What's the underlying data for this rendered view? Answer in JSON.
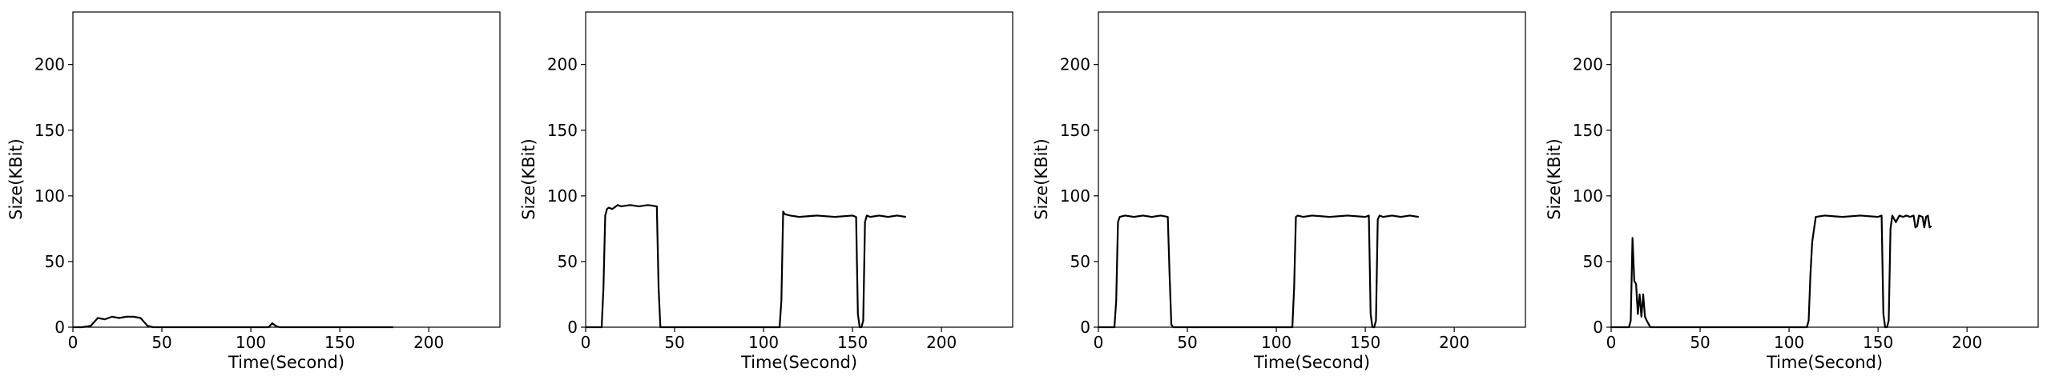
{
  "chart_data": [
    {
      "type": "line",
      "xlabel": "Time(Second)",
      "ylabel": "Size(KBit)",
      "xlim": [
        0,
        240
      ],
      "ylim": [
        0,
        240
      ],
      "xticks": [
        0,
        50,
        100,
        150,
        200
      ],
      "yticks": [
        0,
        50,
        100,
        150,
        200
      ],
      "grid": false,
      "series": [
        {
          "color": "#000000",
          "x": [
            0,
            5,
            10,
            12,
            14,
            18,
            22,
            26,
            30,
            34,
            38,
            40,
            42,
            45,
            60,
            80,
            100,
            110,
            112,
            114,
            116,
            120,
            140,
            160,
            170,
            180
          ],
          "y": [
            0,
            0,
            1,
            4,
            7,
            6,
            8,
            7,
            8,
            8,
            7,
            4,
            1,
            0,
            0,
            0,
            0,
            0,
            3,
            1,
            0,
            0,
            0,
            0,
            0,
            0
          ]
        }
      ]
    },
    {
      "type": "line",
      "xlabel": "Time(Second)",
      "ylabel": "Size(KBit)",
      "xlim": [
        0,
        240
      ],
      "ylim": [
        0,
        240
      ],
      "xticks": [
        0,
        50,
        100,
        150,
        200
      ],
      "yticks": [
        0,
        50,
        100,
        150,
        200
      ],
      "grid": false,
      "series": [
        {
          "color": "#000000",
          "x": [
            0,
            5,
            9,
            10,
            11,
            12,
            13,
            15,
            18,
            20,
            25,
            30,
            35,
            40,
            41,
            42,
            43,
            45,
            60,
            80,
            100,
            109,
            110,
            111,
            112,
            115,
            120,
            130,
            140,
            150,
            152,
            153,
            154,
            155,
            156,
            157,
            158,
            160,
            165,
            170,
            175,
            180
          ],
          "y": [
            0,
            0,
            0,
            30,
            85,
            90,
            91,
            90,
            93,
            92,
            93,
            92,
            93,
            92,
            30,
            0,
            0,
            0,
            0,
            0,
            0,
            0,
            20,
            88,
            86,
            85,
            84,
            85,
            84,
            85,
            84,
            10,
            0,
            0,
            5,
            80,
            85,
            84,
            85,
            84,
            85,
            84
          ]
        }
      ]
    },
    {
      "type": "line",
      "xlabel": "Time(Second)",
      "ylabel": "Size(KBit)",
      "xlim": [
        0,
        240
      ],
      "ylim": [
        0,
        240
      ],
      "xticks": [
        0,
        50,
        100,
        150,
        200
      ],
      "yticks": [
        0,
        50,
        100,
        150,
        200
      ],
      "grid": false,
      "series": [
        {
          "color": "#000000",
          "x": [
            0,
            5,
            9,
            10,
            11,
            12,
            15,
            20,
            25,
            30,
            35,
            39,
            40,
            41,
            42,
            45,
            60,
            80,
            100,
            109,
            110,
            111,
            112,
            115,
            120,
            130,
            140,
            150,
            152,
            153,
            154,
            155,
            156,
            157,
            158,
            160,
            165,
            170,
            175,
            180
          ],
          "y": [
            0,
            0,
            0,
            20,
            80,
            84,
            85,
            84,
            85,
            84,
            85,
            84,
            40,
            2,
            0,
            0,
            0,
            0,
            0,
            0,
            30,
            84,
            85,
            84,
            85,
            84,
            85,
            84,
            85,
            10,
            0,
            0,
            5,
            82,
            85,
            84,
            85,
            84,
            85,
            84
          ]
        }
      ]
    },
    {
      "type": "line",
      "xlabel": "Time(Second)",
      "ylabel": "Size(KBit)",
      "xlim": [
        0,
        240
      ],
      "ylim": [
        0,
        240
      ],
      "xticks": [
        0,
        50,
        100,
        150,
        200
      ],
      "yticks": [
        0,
        50,
        100,
        150,
        200
      ],
      "grid": false,
      "series": [
        {
          "color": "#000000",
          "x": [
            0,
            5,
            10,
            11,
            12,
            13,
            14,
            15,
            16,
            17,
            18,
            19,
            20,
            22,
            25,
            40,
            60,
            80,
            100,
            110,
            111,
            112,
            113,
            115,
            120,
            130,
            140,
            150,
            152,
            153,
            154,
            155,
            156,
            157,
            158,
            160,
            162,
            164,
            166,
            168,
            170,
            171,
            172,
            173,
            175,
            176,
            177,
            178,
            179,
            180
          ],
          "y": [
            0,
            0,
            0,
            5,
            68,
            35,
            33,
            10,
            25,
            8,
            25,
            8,
            5,
            0,
            0,
            0,
            0,
            0,
            0,
            0,
            5,
            40,
            65,
            84,
            85,
            84,
            85,
            84,
            85,
            10,
            0,
            0,
            5,
            75,
            85,
            80,
            85,
            84,
            85,
            84,
            85,
            76,
            77,
            85,
            84,
            76,
            84,
            85,
            76,
            77
          ]
        }
      ]
    }
  ]
}
